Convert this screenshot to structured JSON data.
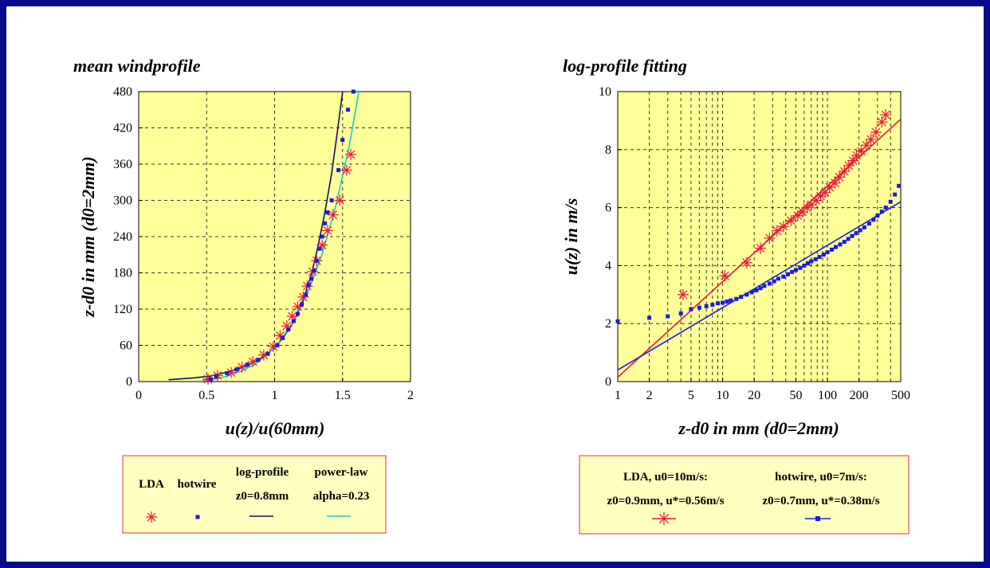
{
  "colors": {
    "frame": "#0a0a8a",
    "plot_bg": "#ffff99",
    "legend_bg": "#ffffc0",
    "legend_border": "#e0304a",
    "lda": "#e8183c",
    "hotwire": "#1a1ae6",
    "log_profile": "#101060",
    "power_law": "#20c8c8"
  },
  "chart_data": [
    {
      "type": "scatter",
      "title": "mean windprofile",
      "xlabel": "u(z)/u(60mm)",
      "ylabel": "z-d0 in mm (d0=2mm)",
      "xlim": [
        0,
        2
      ],
      "ylim": [
        0,
        480
      ],
      "xticks": [
        0,
        0.5,
        1,
        1.5,
        2
      ],
      "xtick_labels": [
        "0",
        "0.5",
        "1",
        "1.5",
        "2"
      ],
      "yticks": [
        0,
        60,
        120,
        180,
        240,
        300,
        360,
        420,
        480
      ],
      "ytick_labels": [
        "0",
        "60",
        "120",
        "180",
        "240",
        "300",
        "360",
        "420",
        "480"
      ],
      "grid": true,
      "legend_position": "below",
      "series": [
        {
          "name": "LDA",
          "marker": "asterisk",
          "x": [
            0.51,
            0.58,
            0.68,
            0.76,
            0.84,
            0.92,
            0.99,
            1.04,
            1.09,
            1.13,
            1.17,
            1.21,
            1.24,
            1.28,
            1.31,
            1.35,
            1.39,
            1.43,
            1.48,
            1.53,
            1.56
          ],
          "y": [
            4,
            10,
            15,
            24,
            33,
            44,
            58,
            76,
            92,
            108,
            124,
            140,
            158,
            182,
            200,
            226,
            250,
            276,
            300,
            350,
            376
          ]
        },
        {
          "name": "hotwire",
          "marker": "square",
          "x": [
            0.53,
            0.57,
            0.65,
            0.72,
            0.8,
            0.88,
            0.95,
            1.02,
            1.06,
            1.1,
            1.14,
            1.17,
            1.2,
            1.23,
            1.25,
            1.27,
            1.29,
            1.31,
            1.33,
            1.35,
            1.37,
            1.39,
            1.42,
            1.47,
            1.5,
            1.54,
            1.58
          ],
          "y": [
            4,
            8,
            14,
            20,
            28,
            36,
            46,
            60,
            72,
            86,
            100,
            112,
            128,
            144,
            160,
            170,
            184,
            200,
            220,
            240,
            262,
            280,
            300,
            350,
            400,
            450,
            480
          ]
        },
        {
          "name": "log-profile",
          "legend_sub": "z0=0.8mm",
          "line": true,
          "x": [
            0.22,
            0.4,
            0.52,
            0.62,
            0.72,
            0.82,
            0.92,
            1.0,
            1.06,
            1.12,
            1.18,
            1.23,
            1.28,
            1.32,
            1.37,
            1.42,
            1.46,
            1.5
          ],
          "y": [
            3,
            6,
            9,
            14,
            20,
            29,
            41,
            56,
            72,
            92,
            118,
            148,
            185,
            225,
            280,
            345,
            410,
            480
          ]
        },
        {
          "name": "power-law",
          "legend_sub": "alpha=0.23",
          "line": true,
          "x": [
            0.47,
            0.55,
            0.65,
            0.75,
            0.85,
            0.95,
            1.05,
            1.15,
            1.25,
            1.35,
            1.45,
            1.55,
            1.62
          ],
          "y": [
            2,
            4,
            9,
            17,
            28,
            45,
            70,
            104,
            150,
            211,
            290,
            391,
            480
          ]
        }
      ]
    },
    {
      "type": "scatter",
      "title": "log-profile fitting",
      "xlabel": "z-d0 in mm (d0=2mm)",
      "ylabel": "u(z) in m/s",
      "xscale": "log",
      "xlim": [
        1,
        500
      ],
      "ylim": [
        0,
        10
      ],
      "xticks": [
        1,
        2,
        5,
        10,
        20,
        50,
        100,
        200,
        500
      ],
      "xtick_labels": [
        "1",
        "2",
        "5",
        "10",
        "20",
        "50",
        "100",
        "200",
        "500"
      ],
      "minor_x_gridlines": [
        3,
        4,
        6,
        7,
        8,
        9,
        30,
        40,
        60,
        70,
        80,
        90,
        300,
        400
      ],
      "yticks": [
        0,
        2,
        4,
        6,
        8,
        10
      ],
      "ytick_labels": [
        "0",
        "2",
        "4",
        "6",
        "8",
        "10"
      ],
      "grid": true,
      "legend_position": "below",
      "legend_entries": [
        {
          "line1": "LDA, u0=10m/s:",
          "line2": "z0=0.9mm, u*=0.56m/s"
        },
        {
          "line1": "hotwire, u0=7m/s:",
          "line2": "z0=0.7mm, u*=0.38m/s"
        }
      ],
      "series": [
        {
          "name": "LDA",
          "marker": "asterisk",
          "x": [
            4.2,
            10.5,
            17,
            23,
            28,
            33,
            38,
            45,
            52,
            58,
            64,
            70,
            78,
            86,
            95,
            105,
            118,
            130,
            145,
            160,
            175,
            190,
            210,
            235,
            260,
            290,
            330,
            360
          ],
          "y": [
            3.0,
            3.65,
            4.1,
            4.6,
            4.95,
            5.2,
            5.35,
            5.55,
            5.72,
            5.85,
            6.0,
            6.1,
            6.25,
            6.4,
            6.52,
            6.7,
            6.85,
            7.05,
            7.25,
            7.45,
            7.62,
            7.8,
            7.95,
            8.15,
            8.35,
            8.6,
            8.95,
            9.2
          ]
        },
        {
          "name": "hotwire",
          "marker": "square",
          "x": [
            1.0,
            2.0,
            3.0,
            4.0,
            5.0,
            6.0,
            7.0,
            8.0,
            9.0,
            10.0,
            11.0,
            12.0,
            13.5,
            15.0,
            17.0,
            19.0,
            21.0,
            23.0,
            25.0,
            28.0,
            31.0,
            34.0,
            38.0,
            42.0,
            46.0,
            50.0,
            55.0,
            60.0,
            65.0,
            70.0,
            77.0,
            84.0,
            92.0,
            100.0,
            110.0,
            120.0,
            132.0,
            145.0,
            158.0,
            172.0,
            188.0,
            205.0,
            225.0,
            250.0,
            275.0,
            300.0,
            330.0,
            360.0,
            400.0,
            440.0,
            480.0
          ],
          "y": [
            2.08,
            2.2,
            2.25,
            2.35,
            2.5,
            2.55,
            2.6,
            2.65,
            2.7,
            2.72,
            2.76,
            2.8,
            2.85,
            2.92,
            3.0,
            3.08,
            3.15,
            3.22,
            3.3,
            3.38,
            3.46,
            3.55,
            3.62,
            3.7,
            3.78,
            3.85,
            3.92,
            4.0,
            4.08,
            4.15,
            4.22,
            4.3,
            4.38,
            4.46,
            4.55,
            4.64,
            4.73,
            4.82,
            4.92,
            5.02,
            5.12,
            5.22,
            5.32,
            5.45,
            5.58,
            5.72,
            5.86,
            6.0,
            6.2,
            6.45,
            6.75
          ]
        },
        {
          "name": "LDA log fit",
          "line": true,
          "x": [
            1,
            500
          ],
          "y": [
            0.15,
            9.05
          ]
        },
        {
          "name": "hotwire log fit",
          "line": true,
          "x": [
            1,
            500
          ],
          "y": [
            0.4,
            6.2
          ]
        }
      ]
    }
  ],
  "legend_left": {
    "lda": "LDA",
    "hotwire": "hotwire",
    "log_line1": "log-profile",
    "log_line2": "z0=0.8mm",
    "power_line1": "power-law",
    "power_line2": "alpha=0.23"
  }
}
